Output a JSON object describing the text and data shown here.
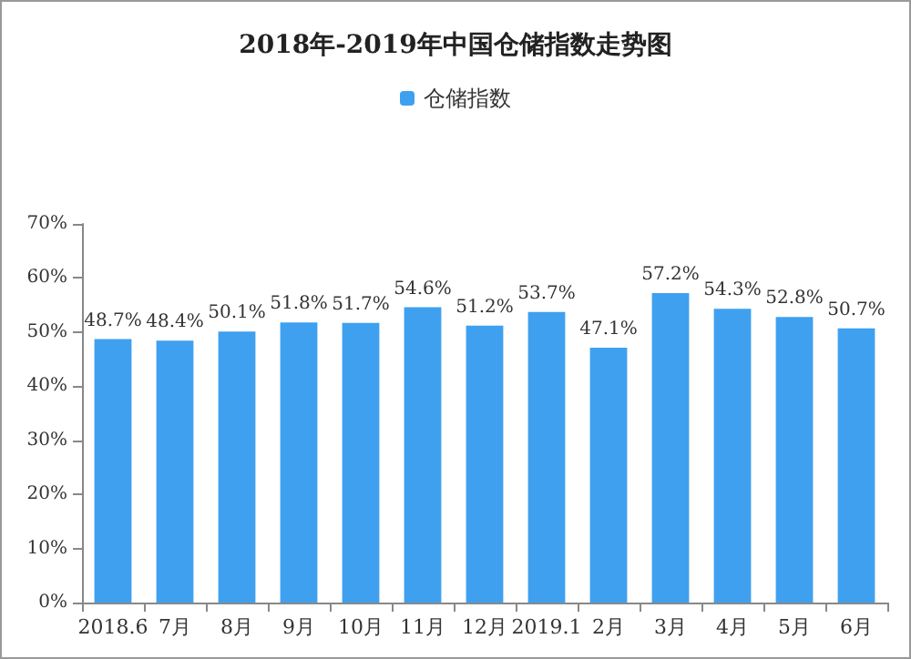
{
  "chart_data": {
    "type": "bar",
    "title": "2018年-2019年中国仓储指数走势图",
    "categories": [
      "2018.6",
      "7月",
      "8月",
      "9月",
      "10月",
      "11月",
      "12月",
      "2019.1",
      "2月",
      "3月",
      "4月",
      "5月",
      "6月"
    ],
    "series": [
      {
        "name": "仓储指数",
        "color": "#3fa0f0",
        "values": [
          48.7,
          48.4,
          50.1,
          51.8,
          51.7,
          54.6,
          51.2,
          53.7,
          47.1,
          57.2,
          54.3,
          52.8,
          50.7
        ],
        "value_labels": [
          "48.7%",
          "48.4%",
          "50.1%",
          "51.8%",
          "51.7%",
          "54.6%",
          "51.2%",
          "53.7%",
          "47.1%",
          "57.2%",
          "54.3%",
          "52.8%",
          "50.7%"
        ]
      }
    ],
    "ylim": [
      0,
      70
    ],
    "yticks": [
      {
        "value": 0,
        "label": "0%"
      },
      {
        "value": 10,
        "label": "10%"
      },
      {
        "value": 20,
        "label": "20%"
      },
      {
        "value": 30,
        "label": "30%"
      },
      {
        "value": 40,
        "label": "40%"
      },
      {
        "value": 50,
        "label": "50%"
      },
      {
        "value": 60,
        "label": "60%"
      },
      {
        "value": 70,
        "label": "70%"
      }
    ],
    "grid": false,
    "legend": "top"
  }
}
